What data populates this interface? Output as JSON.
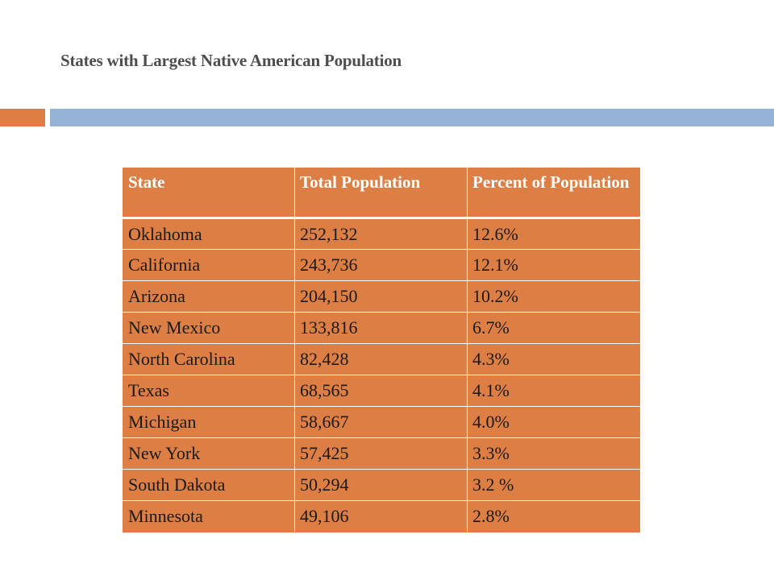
{
  "slide": {
    "title": "States with Largest Native American Population"
  },
  "colors": {
    "accent_orange": "#dd7f44",
    "accent_blue": "#95b3d7",
    "title_text": "#4f4c4c"
  },
  "table": {
    "headers": [
      "State",
      "Total Population",
      "Percent of Population"
    ],
    "rows": [
      [
        "Oklahoma",
        "252,132",
        "12.6%"
      ],
      [
        "California",
        "243,736",
        "12.1%"
      ],
      [
        "Arizona",
        "204,150",
        "10.2%"
      ],
      [
        "New Mexico",
        "133,816",
        "6.7%"
      ],
      [
        "North Carolina",
        "82,428",
        "4.3%"
      ],
      [
        "Texas",
        "68,565",
        "4.1%"
      ],
      [
        "Michigan",
        "58,667",
        "4.0%"
      ],
      [
        "New York",
        "57,425",
        "3.3%"
      ],
      [
        "South Dakota",
        "50,294",
        "3.2 %"
      ],
      [
        "Minnesota",
        "49,106",
        "2.8%"
      ]
    ]
  }
}
